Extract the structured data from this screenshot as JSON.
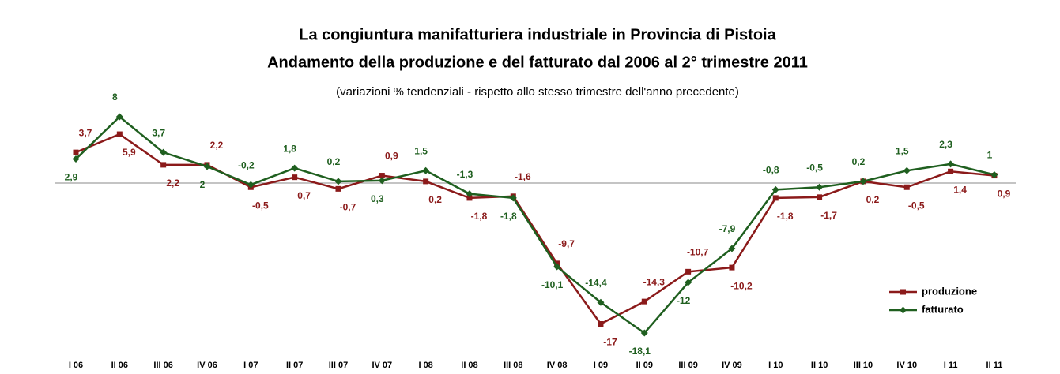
{
  "chart_data": {
    "type": "line",
    "title": "La congiuntura manifatturiera industriale in Provincia di Pistoia",
    "subtitle": "Andamento della produzione  e del fatturato dal 2006 al 2° trimestre 2011",
    "note": "(variazioni % tendenziali - rispetto allo stesso trimestre dell'anno precedente)",
    "categories": [
      "I 06",
      "II 06",
      "III 06",
      "IV  06",
      "I 07",
      "II 07",
      "III 07",
      "IV 07",
      "I 08",
      "II 08",
      "III 08",
      "IV 08",
      "I 09",
      "II 09",
      "III 09",
      "IV 09",
      "I 10",
      "II 10",
      "III 10",
      "IV 10",
      "I 11",
      "II 11"
    ],
    "ylim": [
      -19,
      9
    ],
    "series": [
      {
        "name": "produzione",
        "color": "#8b1a1a",
        "values": [
          3.7,
          5.9,
          2.2,
          2.2,
          -0.5,
          0.7,
          -0.7,
          0.9,
          0.2,
          -1.8,
          -1.6,
          -9.7,
          -17,
          -14.3,
          -10.7,
          -10.2,
          -1.8,
          -1.7,
          0.2,
          -0.5,
          1.4,
          0.9
        ],
        "value_labels": [
          "3,7",
          "5,9",
          "2,2",
          "2,2",
          "-0,5",
          "0,7",
          "-0,7",
          "0,9",
          "0,2",
          "-1,8",
          "-1,6",
          "-9,7",
          "-17",
          "-14,3",
          "-10,7",
          "-10,2",
          "-1,8",
          "-1,7",
          "0,2",
          "-0,5",
          "1,4",
          "0,9"
        ]
      },
      {
        "name": "fatturato",
        "color": "#1f5f1f",
        "values": [
          2.9,
          8,
          3.7,
          2,
          -0.2,
          1.8,
          0.2,
          0.3,
          1.5,
          -1.3,
          -1.8,
          -10.1,
          -14.4,
          -18.1,
          -12,
          -7.9,
          -0.8,
          -0.5,
          0.2,
          1.5,
          2.3,
          1
        ],
        "value_labels": [
          "2,9",
          "8",
          "3,7",
          "2",
          "-0,2",
          "1,8",
          "0,2",
          "0,3",
          "1,5",
          "-1,3",
          "-1,8",
          "-10,1",
          "-14,4",
          "-18,1",
          "-12",
          "-7,9",
          "-0,8",
          "-0,5",
          "0,2",
          "1,5",
          "2,3",
          "1"
        ]
      }
    ]
  }
}
